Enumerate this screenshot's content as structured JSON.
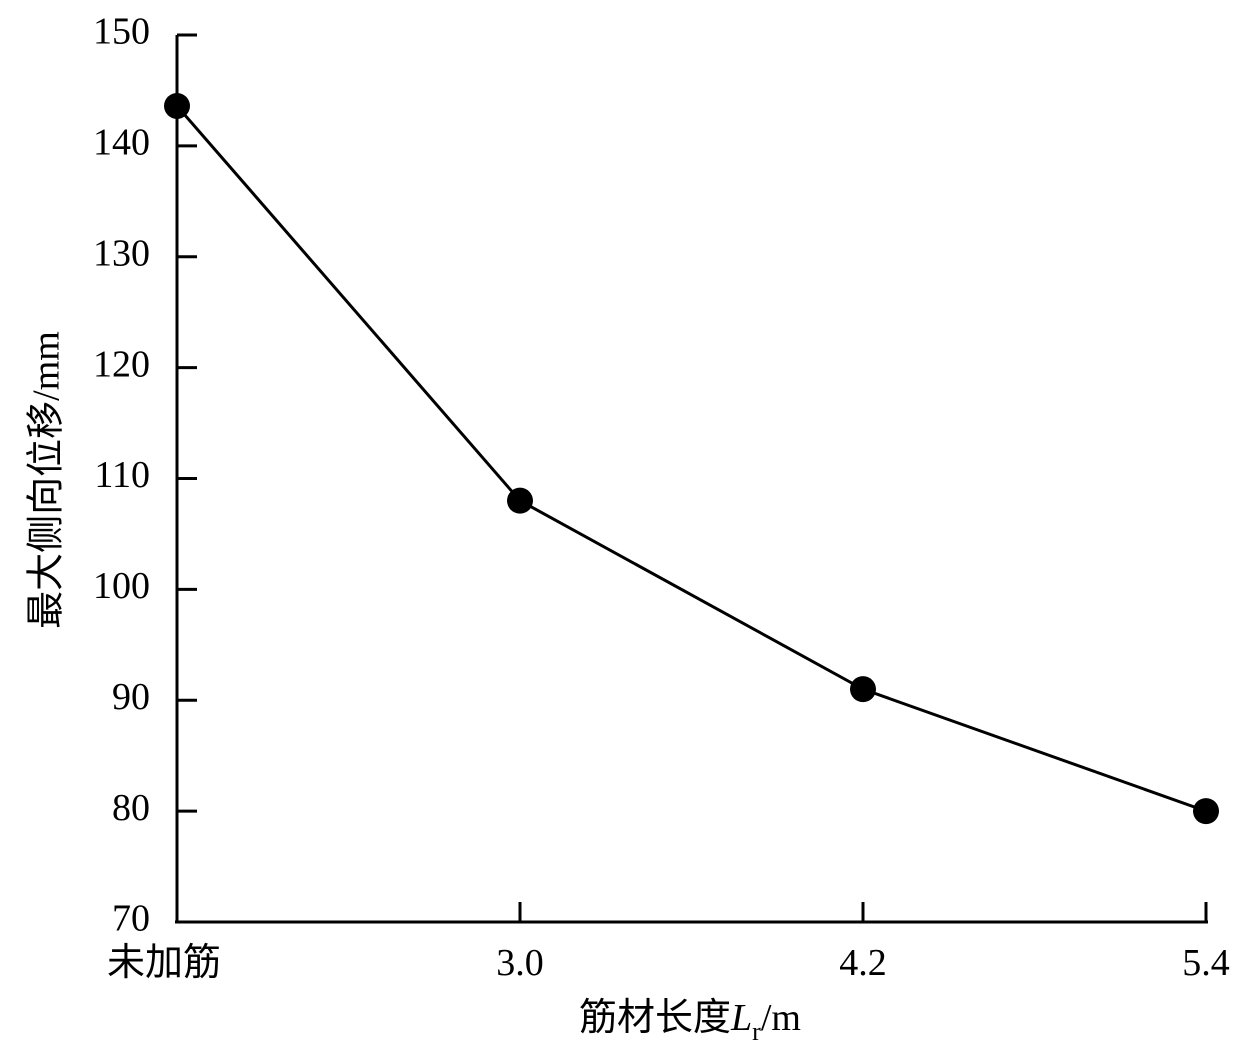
{
  "chart_data": {
    "type": "line",
    "y_label": "最大侧向位移/mm",
    "x_label": {
      "prefix": "筋材长度",
      "variable": "L",
      "subscript": "r",
      "unit": "/m"
    },
    "categories": [
      "未加筋",
      "3.0",
      "4.2",
      "5.4"
    ],
    "series": [
      {
        "color": "#000000",
        "values": [
          143.6,
          108.0,
          91.0,
          80.0
        ]
      }
    ],
    "ylim": [
      70,
      150
    ],
    "yticks": [
      70,
      80,
      90,
      100,
      110,
      120,
      130,
      140,
      150
    ],
    "grid": false
  }
}
